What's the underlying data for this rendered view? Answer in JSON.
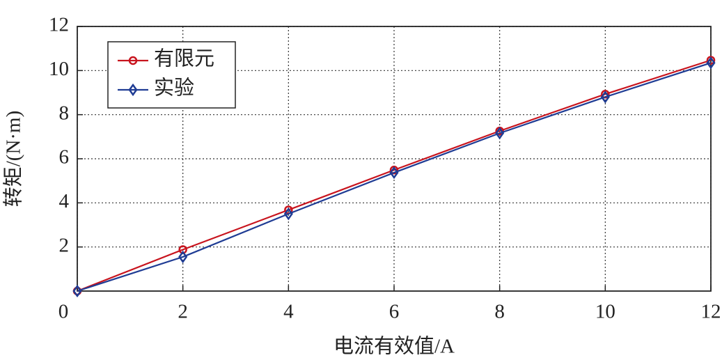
{
  "chart_data": {
    "type": "line",
    "xlabel": "电流有效值/A",
    "ylabel": "转矩/(N·m)",
    "x": [
      0,
      2,
      4,
      6,
      8,
      10,
      12
    ],
    "series": [
      {
        "name": "有限元",
        "color": "#c8141e",
        "marker": "circle",
        "values": [
          0,
          1.88,
          3.68,
          5.49,
          7.26,
          8.93,
          10.47
        ]
      },
      {
        "name": "实验",
        "color": "#1f3c94",
        "marker": "diamond",
        "values": [
          0,
          1.55,
          3.5,
          5.37,
          7.16,
          8.8,
          10.35
        ]
      }
    ],
    "xlim": [
      0,
      12
    ],
    "xticks": [
      0,
      2,
      4,
      6,
      8,
      10,
      12
    ],
    "ylim": [
      0,
      12
    ],
    "yticks": [
      2,
      4,
      6,
      8,
      10,
      12
    ],
    "grid": true,
    "legend": "upper-left"
  }
}
